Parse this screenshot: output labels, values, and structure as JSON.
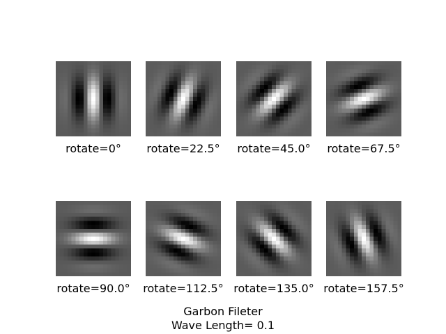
{
  "chart_data": {
    "type": "heatmap",
    "colormap": "gray",
    "grid": false,
    "panels": [
      {
        "title": "rotate=0°",
        "theta_deg": 0
      },
      {
        "title": "rotate=22.5°",
        "theta_deg": 22.5
      },
      {
        "title": "rotate=45.0°",
        "theta_deg": 45.0
      },
      {
        "title": "rotate=67.5°",
        "theta_deg": 67.5
      },
      {
        "title": "rotate=90.0°",
        "theta_deg": 90.0
      },
      {
        "title": "rotate=112.5°",
        "theta_deg": 112.5
      },
      {
        "title": "rotate=135.0°",
        "theta_deg": 135.0
      },
      {
        "title": "rotate=157.5°",
        "theta_deg": 157.5
      }
    ],
    "suptitle_line1": "Garbon Fileter",
    "suptitle_line2": "Wave Length= 0.1"
  }
}
